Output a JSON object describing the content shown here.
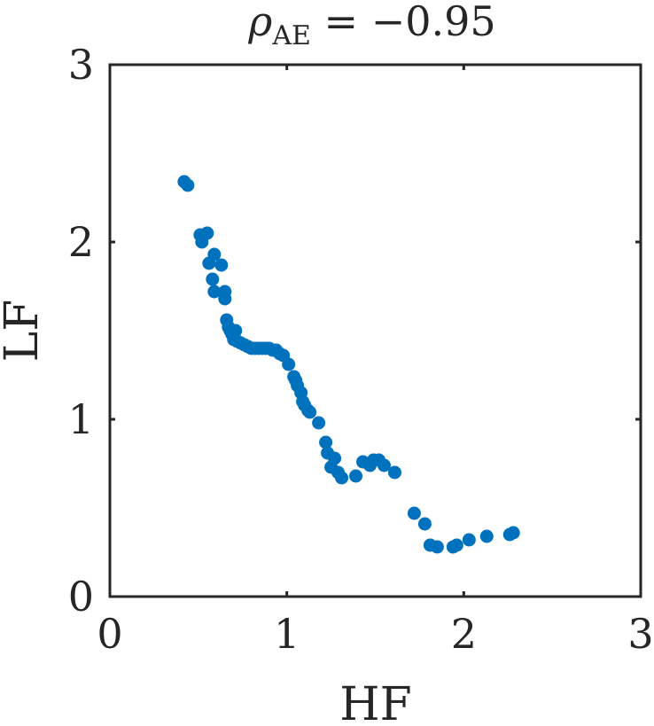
{
  "chart_data": {
    "type": "scatter",
    "title": {
      "symbol": "ρ",
      "subscript": "AE",
      "rest": " = −0.95"
    },
    "xlabel": "HF",
    "ylabel": "LF",
    "xlim": [
      0,
      3
    ],
    "ylim": [
      0,
      3
    ],
    "xticks": [
      0,
      1,
      2,
      3
    ],
    "yticks": [
      0,
      1,
      2,
      3
    ],
    "grid": false,
    "box": true,
    "marker_color": "#0072BD",
    "series": [
      {
        "x": [
          0.42,
          0.44,
          0.51,
          0.52,
          0.55,
          0.56,
          0.58,
          0.59,
          0.59,
          0.63,
          0.65,
          0.65,
          0.66,
          0.67,
          0.68,
          0.69,
          0.7,
          0.71,
          0.72,
          0.74,
          0.76,
          0.78,
          0.8,
          0.82,
          0.84,
          0.86,
          0.88,
          0.9,
          0.92,
          0.94,
          0.96,
          0.98,
          1.01,
          1.04,
          1.05,
          1.06,
          1.08,
          1.09,
          1.1,
          1.12,
          1.13,
          1.18,
          1.22,
          1.23,
          1.25,
          1.27,
          1.29,
          1.31,
          1.39,
          1.43,
          1.47,
          1.49,
          1.52,
          1.55,
          1.61,
          1.72,
          1.78,
          1.81,
          1.85,
          1.94,
          1.96,
          2.03,
          2.13,
          2.26,
          2.28
        ],
        "y": [
          2.34,
          2.32,
          2.04,
          2.0,
          2.05,
          1.88,
          1.79,
          1.93,
          1.72,
          1.87,
          1.72,
          1.68,
          1.56,
          1.52,
          1.5,
          1.48,
          1.45,
          1.5,
          1.44,
          1.43,
          1.42,
          1.41,
          1.4,
          1.4,
          1.4,
          1.4,
          1.4,
          1.4,
          1.39,
          1.39,
          1.37,
          1.36,
          1.31,
          1.24,
          1.22,
          1.19,
          1.15,
          1.1,
          1.08,
          1.05,
          1.04,
          0.98,
          0.87,
          0.81,
          0.73,
          0.78,
          0.7,
          0.67,
          0.68,
          0.76,
          0.74,
          0.77,
          0.77,
          0.74,
          0.7,
          0.47,
          0.41,
          0.29,
          0.28,
          0.28,
          0.29,
          0.32,
          0.34,
          0.35,
          0.36
        ]
      }
    ]
  }
}
